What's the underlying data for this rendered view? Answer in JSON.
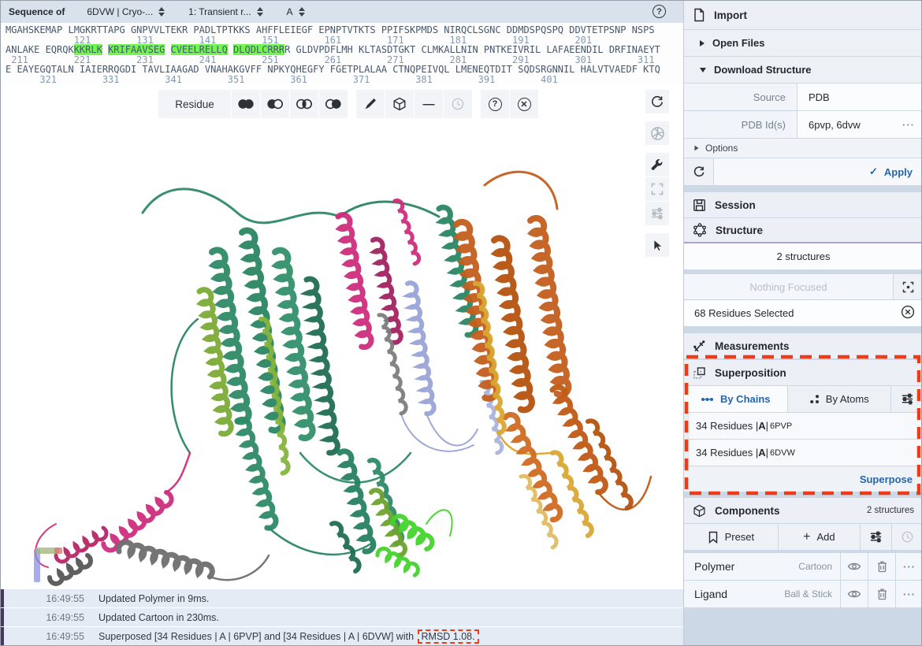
{
  "sequence_header": {
    "label": "Sequence of",
    "structure_select": "6DVW | Cryo-...",
    "entity_select": "1: Transient r...",
    "chain_select": "A"
  },
  "sequence": {
    "line1": "MGAHSKEMAP LMGKRTTAPG GNPVVLTEKR PADLTPTKKS AHFFLEIEGF EPNPTVTKTS PPIFSKPMDS NIRQCLSGNC DDMDSPQSPQ DDVTETPSNP NSPS",
    "numbers1": "            121        131        141        151        161        171        181        191        201",
    "line2": {
      "p1": "ANLAKE EQRQK",
      "h1": "KKRLK",
      "s1": " ",
      "h2": "KRIFAAVSEG",
      "s2": " ",
      "h3": "CVEELRELLQ",
      "s3": " ",
      "h4": "DLQDLCRRR",
      "p2": "R GLDVPDFLMH KLTASDTGKT CLMKALLNIN PNTKEIVRIL LAFAEENDIL DRFINAEYT"
    },
    "numbers2": " 211        221        231        241        251        261        271        281        291        301        311",
    "line3": "E EAYEGQTALN IAIERRQGDI TAVLIAAGAD VNAHAKGVFF NPKYQHEGFY FGETPLALAA CTNQPEIVQL LMENEQTDIT SQDSRGNNIL HALVTVAEDF KTQ",
    "numbers3": "      321        331        341        351        361        371        381        391        401"
  },
  "viewer_toolbar": {
    "granularity": "Residue"
  },
  "icons": {
    "plus": "+",
    "check": "✓",
    "help": "?",
    "close_x": "✕",
    "minus": "—",
    "more": "···"
  },
  "right_panel": {
    "import": {
      "title": "Import",
      "open_files": "Open Files",
      "download_structure": "Download Structure",
      "source_label": "Source",
      "source_value": "PDB",
      "pdbid_label": "PDB Id(s)",
      "pdbid_value": "6pvp, 6dvw",
      "options_label": "Options",
      "apply_label": "Apply"
    },
    "session": {
      "title": "Session"
    },
    "structure": {
      "title": "Structure",
      "count": "2 structures",
      "focus_placeholder": "Nothing Focused",
      "selection_status": "68 Residues Selected"
    },
    "measurements": {
      "title": "Measurements"
    },
    "superposition": {
      "title": "Superposition",
      "tab_by_chains": "By Chains",
      "tab_by_atoms": "By Atoms",
      "rows": [
        {
          "p1": "34 Residues | ",
          "chain": "A",
          "p2": " | ",
          "id": "6PVP"
        },
        {
          "p1": "34 Residues | ",
          "chain": "A",
          "p2": " | ",
          "id": "6DVW"
        }
      ],
      "superpose_label": "Superpose"
    },
    "components": {
      "title": "Components",
      "badge": "2 structures",
      "preset_label": "Preset",
      "add_label": "Add",
      "rows": [
        {
          "name": "Polymer",
          "repr": "Cartoon"
        },
        {
          "name": "Ligand",
          "repr": "Ball & Stick"
        }
      ]
    }
  },
  "log": {
    "rows": [
      {
        "time": "16:49:55",
        "msg": "Updated Polymer in 9ms."
      },
      {
        "time": "16:49:55",
        "msg": "Updated Cartoon in 230ms."
      },
      {
        "time": "16:49:55",
        "msg": "Superposed [34 Residues | A | 6PVP] and [34 Residues | A | 6DVW] with ",
        "highlight": "RMSD 1.08."
      }
    ]
  },
  "colors": {
    "accent_blue": "#2566ae",
    "highlight_green": "#72f551",
    "annotation_red": "#f03b16",
    "structure_underline": "#b2a0d2",
    "log_bar_purple": "#4a3566"
  }
}
